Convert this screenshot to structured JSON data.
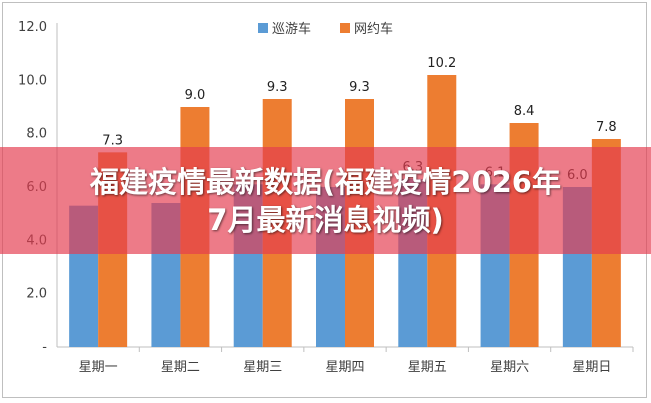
{
  "chart_data": {
    "type": "bar",
    "categories": [
      "星期一",
      "星期二",
      "星期三",
      "星期四",
      "星期五",
      "星期六",
      "星期日"
    ],
    "series": [
      {
        "name": "巡游车",
        "values": [
          5.3,
          5.4,
          6.1,
          6.0,
          6.3,
          6.1,
          6.0
        ],
        "color": "#5b9bd5"
      },
      {
        "name": "网约车",
        "values": [
          7.3,
          9.0,
          9.3,
          9.3,
          10.2,
          8.4,
          7.8
        ],
        "color": "#ed7d31"
      }
    ],
    "ylim": [
      0,
      12
    ],
    "yticks": [
      "-",
      "2.0",
      "4.0",
      "6.0",
      "8.0",
      "10.0",
      "12.0"
    ],
    "data_labels": {
      "网约车": [
        "7.3",
        "9.0",
        "9.3",
        "9.3",
        "10.2",
        "8.4",
        "7.8"
      ],
      "巡游车": [
        "",
        "",
        "",
        "",
        "6.3",
        "6.1",
        "6.0"
      ]
    },
    "legend_position": "top-center",
    "grid": false
  },
  "banner": {
    "line1": "福建疫情最新数据(福建疫情2026年",
    "line2": "7月最新消息视频)"
  }
}
